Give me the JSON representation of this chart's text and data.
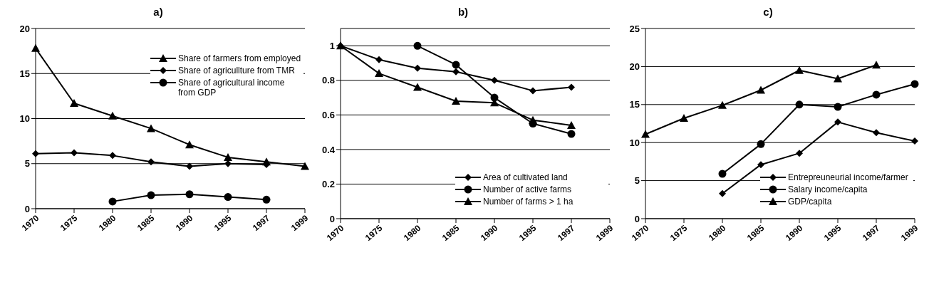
{
  "chart_data": [
    {
      "type": "line",
      "title": "a)",
      "categories": [
        "1970",
        "1975",
        "1980",
        "1985",
        "1990",
        "1995",
        "1997",
        "1999"
      ],
      "ylim": [
        0,
        20
      ],
      "yticks": [
        0,
        5,
        10,
        15,
        20
      ],
      "grid": "y",
      "legend": "top right",
      "line_style": "solid",
      "series": [
        {
          "name": "Share of farmers from employed",
          "color": "#000000",
          "marker": "triangle",
          "values": [
            17.8,
            11.7,
            10.3,
            8.9,
            7.1,
            5.7,
            5.2,
            4.7
          ]
        },
        {
          "name": "Share of agricullture from TMR",
          "color": "#000000",
          "marker": "diamond",
          "values": [
            6.1,
            6.2,
            5.9,
            5.2,
            4.7,
            5.0,
            4.9,
            null
          ]
        },
        {
          "name": "Share of agricultural income from GDP",
          "color": "#000000",
          "marker": "circle",
          "values": [
            null,
            null,
            0.8,
            1.5,
            1.6,
            1.3,
            1.0,
            null
          ]
        }
      ]
    },
    {
      "type": "line",
      "title": "b)",
      "categories": [
        "1970",
        "1975",
        "1980",
        "1985",
        "1990",
        "1995",
        "1997",
        "1999"
      ],
      "ylim": [
        0,
        1.1
      ],
      "yticks": [
        0,
        0.2,
        0.4,
        0.6,
        0.8,
        1
      ],
      "grid": "y",
      "legend": "bottom right",
      "line_style": "solid",
      "series": [
        {
          "name": "Area of cultivated land",
          "color": "#000000",
          "marker": "diamond",
          "values": [
            1.0,
            0.92,
            0.87,
            0.85,
            0.8,
            0.74,
            0.76,
            null
          ]
        },
        {
          "name": "Number of active farms",
          "color": "#000000",
          "marker": "circle",
          "values": [
            null,
            null,
            1.0,
            0.89,
            0.7,
            0.55,
            0.49,
            null
          ]
        },
        {
          "name": "Number of farms > 1 ha",
          "color": "#000000",
          "marker": "triangle",
          "values": [
            1.0,
            0.84,
            0.76,
            0.68,
            0.67,
            0.57,
            0.54,
            null
          ]
        }
      ]
    },
    {
      "type": "line",
      "title": "c)",
      "categories": [
        "1970",
        "1975",
        "1980",
        "1985",
        "1990",
        "1995",
        "1997",
        "1999"
      ],
      "ylim": [
        0,
        25
      ],
      "yticks": [
        0,
        5,
        10,
        15,
        20,
        25
      ],
      "grid": "y",
      "legend": "bottom right",
      "line_style": "solid",
      "series": [
        {
          "name": "Entrepreuneurial income/farmer",
          "color": "#000000",
          "marker": "diamond",
          "values": [
            null,
            null,
            3.3,
            7.1,
            8.6,
            12.7,
            11.3,
            10.2
          ]
        },
        {
          "name": "Salary income/capita",
          "color": "#000000",
          "marker": "circle",
          "values": [
            null,
            null,
            5.9,
            9.8,
            15.0,
            14.7,
            16.3,
            17.7
          ]
        },
        {
          "name": "GDP/capita",
          "color": "#000000",
          "marker": "triangle",
          "values": [
            11.1,
            13.2,
            14.9,
            16.9,
            19.5,
            18.4,
            20.2,
            null
          ]
        }
      ]
    }
  ]
}
